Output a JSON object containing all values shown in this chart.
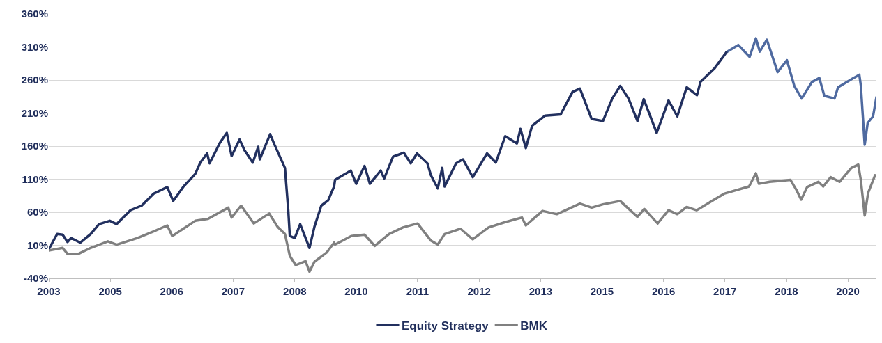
{
  "chart_data": {
    "type": "line",
    "x": [
      "2003-11-26",
      "2004-01-27",
      "2004-03-08",
      "2004-04-13",
      "2004-05-09",
      "2004-07-17",
      "2004-10-02",
      "2004-12-03",
      "2005-02-21",
      "2005-04-13",
      "2005-07-24",
      "2005-10-16",
      "2006-01-12",
      "2006-04-24",
      "2006-06-07",
      "2006-08-23",
      "2006-11-18",
      "2006-12-25",
      "2007-02-14",
      "2007-03-04",
      "2007-05-20",
      "2007-07-10",
      "2007-08-15",
      "2007-10-13",
      "2007-11-18",
      "2008-01-19",
      "2008-02-28",
      "2008-03-11",
      "2008-05-27",
      "2008-06-29",
      "2008-09-14",
      "2008-10-09",
      "2008-10-20",
      "2008-11-26",
      "2009-01-05",
      "2009-03-15",
      "2009-04-21",
      "2009-06-11",
      "2009-08-01",
      "2009-09-14",
      "2009-09-21",
      "2010-01-16",
      "2010-02-25",
      "2010-04-28",
      "2010-06-07",
      "2010-08-26",
      "2010-09-21",
      "2010-11-26",
      "2011-02-14",
      "2011-04-06",
      "2011-05-23",
      "2011-08-08",
      "2011-09-03",
      "2011-10-24",
      "2011-11-26",
      "2011-12-14",
      "2012-03-08",
      "2012-04-28",
      "2012-07-10",
      "2012-10-24",
      "2012-12-28",
      "2013-03-08",
      "2013-06-03",
      "2013-06-29",
      "2013-08-08",
      "2013-09-24",
      "2013-12-28",
      "2014-04-24",
      "2014-07-21",
      "2014-09-14",
      "2014-12-10",
      "2015-03-04",
      "2015-05-12",
      "2015-07-10",
      "2015-09-10",
      "2015-11-15",
      "2016-01-01",
      "2016-04-06",
      "2016-07-03",
      "2016-09-06",
      "2016-11-15",
      "2017-01-30",
      "2017-02-25",
      "2017-06-11",
      "2017-09-06"
    ],
    "series": [
      {
        "color": "#4f6aa0",
        "x": [
          "2017-09-06",
          "2017-12-03",
          "2018-02-25",
          "2018-04-13",
          "2018-05-12",
          "2018-07-03",
          "2018-09-21",
          "2018-11-29",
          "2019-01-23",
          "2019-03-19",
          "2019-06-03",
          "2019-07-28",
          "2019-09-03",
          "2019-11-18",
          "2019-12-14",
          "2020-03-30",
          "2020-05-20",
          "2020-05-31",
          "2020-06-29",
          "2020-07-21",
          "2020-08-30",
          "2020-09-24"
        ],
        "values": [
          302,
          313,
          295,
          323,
          303,
          321,
          272,
          290,
          251,
          232,
          257,
          263,
          236,
          232,
          249,
          262,
          268,
          252,
          162,
          195,
          205,
          234
        ]
      },
      {
        "name": "Equity Strategy",
        "color": "#22305f",
        "values": [
          4,
          27,
          26,
          15,
          21,
          14,
          27,
          42,
          47,
          42,
          63,
          70,
          88,
          98,
          77,
          99,
          118,
          135,
          149,
          134,
          165,
          180,
          145,
          170,
          154,
          135,
          159,
          140,
          178,
          162,
          127,
          62,
          24,
          21,
          42,
          6,
          38,
          70,
          78,
          99,
          109,
          123,
          103,
          130,
          103,
          123,
          111,
          144,
          150,
          134,
          149,
          134,
          116,
          96,
          127,
          99,
          134,
          140,
          113,
          149,
          135,
          175,
          164,
          186,
          157,
          191,
          206,
          208,
          242,
          247,
          201,
          198,
          232,
          251,
          232,
          198,
          231,
          180,
          229,
          205,
          249,
          237,
          257,
          278,
          302
        ]
      },
      {
        "name": "BMK",
        "color": "#808080",
        "x": [
          "2003-11-26",
          "2004-03-08",
          "2004-04-13",
          "2004-07-03",
          "2004-10-02",
          "2005-02-07",
          "2005-04-13",
          "2005-09-14",
          "2006-01-12",
          "2006-04-24",
          "2006-05-31",
          "2006-11-18",
          "2007-02-21",
          "2007-07-21",
          "2007-08-15",
          "2007-10-24",
          "2008-01-27",
          "2008-05-20",
          "2008-07-21",
          "2008-09-14",
          "2008-10-20",
          "2008-12-03",
          "2009-02-14",
          "2009-03-15",
          "2009-04-21",
          "2009-07-21",
          "2009-09-14",
          "2009-09-21",
          "2010-01-19",
          "2010-04-28",
          "2010-07-13",
          "2010-10-27",
          "2011-02-07",
          "2011-05-27",
          "2011-09-03",
          "2011-10-24",
          "2011-12-14",
          "2012-04-10",
          "2012-07-10",
          "2012-11-04",
          "2013-03-08",
          "2013-07-10",
          "2013-08-08",
          "2013-12-10",
          "2014-03-26",
          "2014-09-14",
          "2014-12-10",
          "2015-03-04",
          "2015-07-10",
          "2015-11-15",
          "2016-01-05",
          "2016-04-13",
          "2016-07-03",
          "2016-09-06",
          "2016-11-15",
          "2017-01-27",
          "2017-08-19",
          "2018-02-21",
          "2018-04-13",
          "2018-05-05",
          "2018-07-24",
          "2018-11-04",
          "2018-12-25",
          "2019-02-10",
          "2019-03-15",
          "2019-04-28",
          "2019-07-21",
          "2019-08-26",
          "2019-10-20",
          "2019-12-25",
          "2020-03-22",
          "2020-05-12",
          "2020-05-31",
          "2020-06-29",
          "2020-07-24",
          "2020-09-14"
        ],
        "values": [
          2,
          6,
          -3,
          -3,
          6,
          16,
          11,
          21,
          31,
          40,
          24,
          47,
          50,
          67,
          52,
          70,
          43,
          58,
          38,
          27,
          -6,
          -20,
          -14,
          -30,
          -15,
          -1,
          14,
          11,
          24,
          26,
          9,
          27,
          37,
          43,
          17,
          11,
          27,
          35,
          19,
          37,
          45,
          52,
          40,
          62,
          57,
          73,
          67,
          72,
          77,
          53,
          65,
          43,
          63,
          57,
          68,
          63,
          88,
          99,
          119,
          103,
          106,
          108,
          109,
          93,
          79,
          98,
          106,
          99,
          113,
          106,
          127,
          132,
          109,
          55,
          89,
          116
        ]
      }
    ],
    "xlim": [
      "2003-11-26",
      "2020-09-24"
    ],
    "xticks": [
      {
        "value": "2003-11-26",
        "label": "2003"
      },
      {
        "value": "2005-02-25",
        "label": "2005"
      },
      {
        "value": "2006-05-27",
        "label": "2006"
      },
      {
        "value": "2007-08-26",
        "label": "2007"
      },
      {
        "value": "2008-11-26",
        "label": "2008"
      },
      {
        "value": "2010-02-25",
        "label": "2010"
      },
      {
        "value": "2011-05-27",
        "label": "2011"
      },
      {
        "value": "2012-08-26",
        "label": "2012"
      },
      {
        "value": "2013-11-26",
        "label": "2013"
      },
      {
        "value": "2015-02-25",
        "label": "2015"
      },
      {
        "value": "2016-05-27",
        "label": "2016"
      },
      {
        "value": "2017-08-26",
        "label": "2017"
      },
      {
        "value": "2018-11-26",
        "label": "2018"
      },
      {
        "value": "2020-02-25",
        "label": "2020"
      }
    ],
    "ylim": [
      -40,
      360
    ],
    "yticks": [
      {
        "value": -40,
        "label": "-40%"
      },
      {
        "value": 10,
        "label": "10%"
      },
      {
        "value": 60,
        "label": "60%"
      },
      {
        "value": 110,
        "label": "110%"
      },
      {
        "value": 160,
        "label": "160%"
      },
      {
        "value": 210,
        "label": "210%"
      },
      {
        "value": 260,
        "label": "260%"
      },
      {
        "value": 310,
        "label": "310%"
      },
      {
        "value": 360,
        "label": "360%"
      }
    ],
    "grid": "y",
    "legend": "bottom",
    "marker": "none",
    "line_style": "solid"
  }
}
